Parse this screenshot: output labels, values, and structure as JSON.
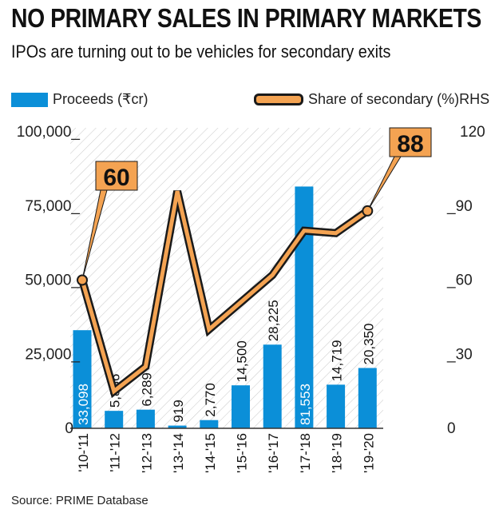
{
  "title": "NO PRIMARY SALES IN PRIMARY MARKETS",
  "subtitle": "IPOs are turning out to be vehicles for secondary exits",
  "source": "Source: PRIME Database",
  "chart_data": {
    "type": "bar+line",
    "categories": [
      "'10-'11",
      "'11-'12",
      "'12-'13",
      "'13-'14",
      "'14-'15",
      "'15-'16",
      "'16-'17",
      "'17-'18",
      "'18-'19",
      "'19-'20"
    ],
    "series": [
      {
        "name": "Proceeds (₹cr)",
        "type": "bar",
        "axis": "left",
        "color": "#0b8fd8",
        "values": [
          33098,
          5886,
          6289,
          919,
          2770,
          14500,
          28225,
          81553,
          14719,
          20350
        ],
        "labels": [
          "33,098",
          "5,886",
          "6,289",
          "919",
          "2,770",
          "14,500",
          "28,225",
          "81,553",
          "14,719",
          "20,350"
        ]
      },
      {
        "name": "Share of secondary (%)RHS",
        "type": "line",
        "axis": "right",
        "color": "#f4a352",
        "values": [
          60,
          15,
          25,
          96,
          40,
          51,
          62,
          80,
          79,
          88
        ],
        "callouts": [
          "60",
          "88"
        ]
      }
    ],
    "left_axis": {
      "ylim": [
        0,
        100000
      ],
      "ticks": [
        "0",
        "25,000_",
        "50,000_",
        "75,000_",
        "100,000_"
      ]
    },
    "right_axis": {
      "ylim": [
        0,
        120
      ],
      "ticks": [
        "0",
        "_30",
        "_60",
        "_90",
        "120"
      ]
    },
    "grid": false,
    "legend": "top"
  }
}
